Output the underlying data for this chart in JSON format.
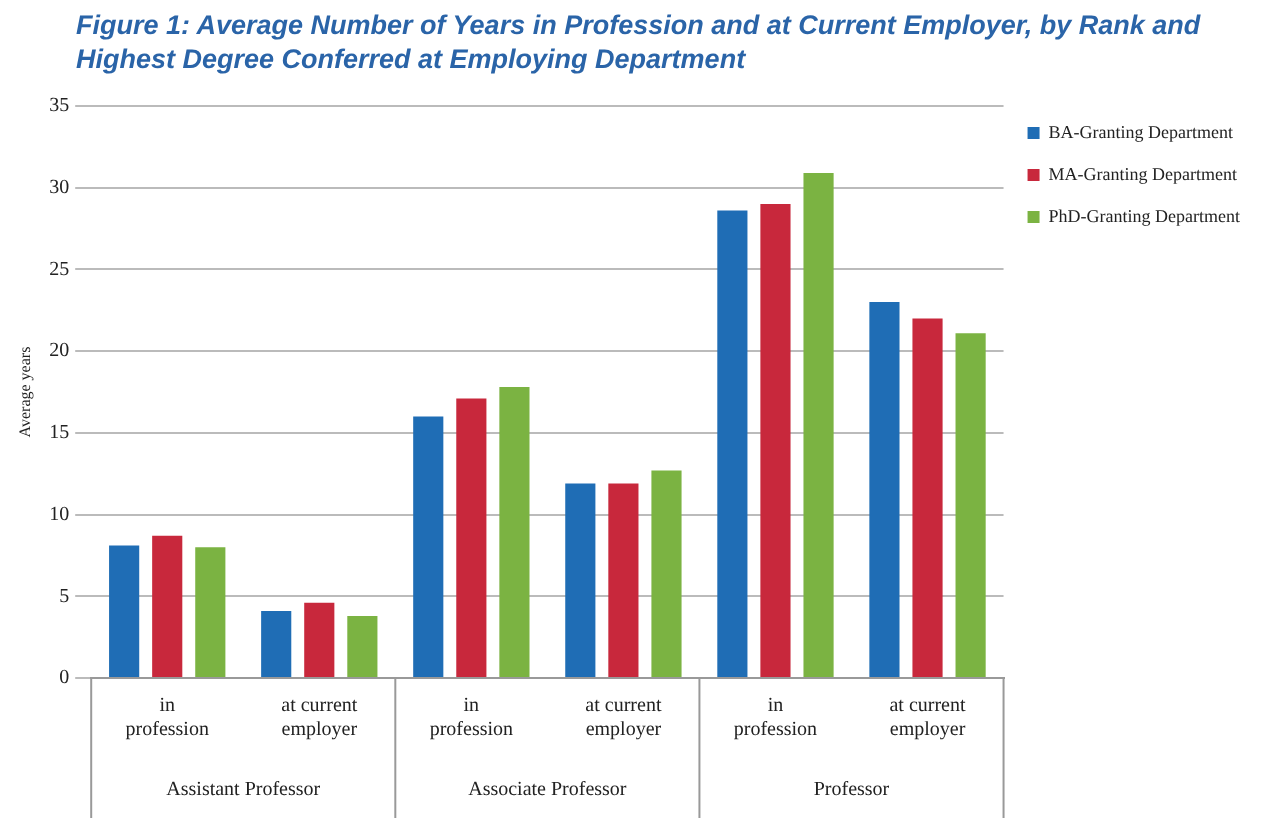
{
  "chart_data": {
    "type": "bar",
    "title": "Figure 1: Average Number of Years in Profession and at Current Employer, by Rank and Highest Degree Conferred at Employing Department",
    "ylabel": "Average years",
    "categories": [
      "in profession",
      "at current employer",
      "in profession",
      "at current employer",
      "in profession",
      "at current employer"
    ],
    "annotations": [
      "Assistant Professor",
      "Associate Professor",
      "Professor"
    ],
    "series": [
      {
        "name": "BA-Granting Department",
        "color": "#1f6db5",
        "values": [
          8.1,
          4.1,
          16,
          11.9,
          28.6,
          23.0
        ]
      },
      {
        "name": "MA-Granting Department",
        "color": "#c8283c",
        "values": [
          8.7,
          4.6,
          17.1,
          11.9,
          29.0,
          22.0
        ]
      },
      {
        "name": "PhD-Granting Department",
        "color": "#7bb342",
        "values": [
          8.0,
          3.8,
          17.8,
          12.7,
          30.9,
          21.1
        ]
      }
    ],
    "ylim": [
      0,
      35
    ],
    "yticks": [
      0,
      5,
      10,
      15,
      20,
      25,
      30,
      35
    ],
    "grid": "y",
    "legend": "top right"
  }
}
